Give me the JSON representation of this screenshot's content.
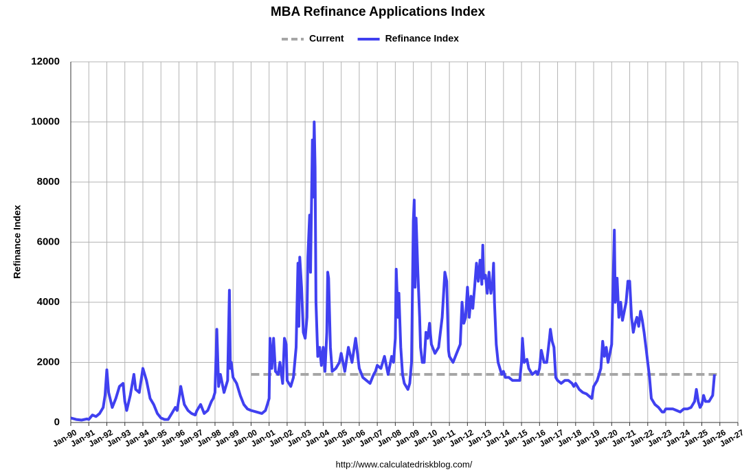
{
  "chart_data": {
    "type": "line",
    "title": "MBA Refinance Applications Index",
    "y_label": "Refinance Index",
    "source": "http://www.calculatedriskblog.com/",
    "legend": "top",
    "grid": true,
    "xlim": [
      1990,
      2027
    ],
    "xticks": [
      {
        "value": 1990,
        "label": "Jan-90"
      },
      {
        "value": 1991,
        "label": "Jan-91"
      },
      {
        "value": 1992,
        "label": "Jan-92"
      },
      {
        "value": 1993,
        "label": "Jan-93"
      },
      {
        "value": 1994,
        "label": "Jan-94"
      },
      {
        "value": 1995,
        "label": "Jan-95"
      },
      {
        "value": 1996,
        "label": "Jan-96"
      },
      {
        "value": 1997,
        "label": "Jan-97"
      },
      {
        "value": 1998,
        "label": "Jan-98"
      },
      {
        "value": 1999,
        "label": "Jan-99"
      },
      {
        "value": 2000,
        "label": "Jan-00"
      },
      {
        "value": 2001,
        "label": "Jan-01"
      },
      {
        "value": 2002,
        "label": "Jan-02"
      },
      {
        "value": 2003,
        "label": "Jan-03"
      },
      {
        "value": 2004,
        "label": "Jan-04"
      },
      {
        "value": 2005,
        "label": "Jan-05"
      },
      {
        "value": 2006,
        "label": "Jan-06"
      },
      {
        "value": 2007,
        "label": "Jan-07"
      },
      {
        "value": 2008,
        "label": "Jan-08"
      },
      {
        "value": 2009,
        "label": "Jan-09"
      },
      {
        "value": 2010,
        "label": "Jan-10"
      },
      {
        "value": 2011,
        "label": "Jan-11"
      },
      {
        "value": 2012,
        "label": "Jan-12"
      },
      {
        "value": 2013,
        "label": "Jan-13"
      },
      {
        "value": 2014,
        "label": "Jan-14"
      },
      {
        "value": 2015,
        "label": "Jan-15"
      },
      {
        "value": 2016,
        "label": "Jan-16"
      },
      {
        "value": 2017,
        "label": "Jan-17"
      },
      {
        "value": 2018,
        "label": "Jan-18"
      },
      {
        "value": 2019,
        "label": "Jan-19"
      },
      {
        "value": 2020,
        "label": "Jan-20"
      },
      {
        "value": 2021,
        "label": "Jan-21"
      },
      {
        "value": 2022,
        "label": "Jan-22"
      },
      {
        "value": 2023,
        "label": "Jan-23"
      },
      {
        "value": 2024,
        "label": "Jan-24"
      },
      {
        "value": 2025,
        "label": "Jan-25"
      },
      {
        "value": 2026,
        "label": "Jan-26"
      },
      {
        "value": 2027,
        "label": "Jan-27"
      }
    ],
    "ylim": [
      0,
      12000
    ],
    "yticks": [
      0,
      2000,
      4000,
      6000,
      8000,
      10000,
      12000
    ],
    "series": [
      {
        "name": "Current",
        "color": "#a6a6a6",
        "dashed": true,
        "x": [
          2000,
          2026
        ],
        "values": [
          1600,
          1600
        ]
      },
      {
        "name": "Refinance Index",
        "color": "#4040f0",
        "dashed": false,
        "x": [
          1990,
          1990.3,
          1990.6,
          1990.9,
          1991,
          1991.2,
          1991.4,
          1991.6,
          1991.8,
          1991.9,
          1992,
          1992.1,
          1992.3,
          1992.5,
          1992.7,
          1992.9,
          1993,
          1993.1,
          1993.3,
          1993.5,
          1993.6,
          1993.8,
          1994,
          1994.2,
          1994.4,
          1994.6,
          1994.8,
          1995,
          1995.2,
          1995.4,
          1995.6,
          1995.8,
          1995.9,
          1996,
          1996.1,
          1996.3,
          1996.5,
          1996.7,
          1996.9,
          1997,
          1997.2,
          1997.4,
          1997.6,
          1997.8,
          1997.9,
          1998,
          1998.1,
          1998.2,
          1998.3,
          1998.5,
          1998.7,
          1998.8,
          1998.85,
          1998.9,
          1999,
          1999.2,
          1999.4,
          1999.6,
          1999.8,
          2000,
          2000.3,
          2000.6,
          2000.8,
          2000.9,
          2001,
          2001.05,
          2001.15,
          2001.25,
          2001.35,
          2001.5,
          2001.6,
          2001.75,
          2001.85,
          2001.95,
          2002,
          2002.1,
          2002.2,
          2002.35,
          2002.5,
          2002.6,
          2002.65,
          2002.7,
          2002.8,
          2002.9,
          2003,
          2003.1,
          2003.15,
          2003.25,
          2003.3,
          2003.4,
          2003.45,
          2003.5,
          2003.55,
          2003.6,
          2003.7,
          2003.8,
          2003.9,
          2004,
          2004.1,
          2004.2,
          2004.25,
          2004.3,
          2004.4,
          2004.5,
          2004.7,
          2004.9,
          2005,
          2005.2,
          2005.4,
          2005.6,
          2005.8,
          2005.9,
          2006,
          2006.2,
          2006.4,
          2006.6,
          2006.8,
          2006.9,
          2007,
          2007.2,
          2007.4,
          2007.6,
          2007.8,
          2007.9,
          2008,
          2008.05,
          2008.15,
          2008.2,
          2008.3,
          2008.4,
          2008.5,
          2008.7,
          2008.8,
          2008.9,
          2009,
          2009.05,
          2009.1,
          2009.15,
          2009.25,
          2009.35,
          2009.4,
          2009.5,
          2009.6,
          2009.7,
          2009.8,
          2009.9,
          2010,
          2010.2,
          2010.4,
          2010.6,
          2010.75,
          2010.85,
          2010.95,
          2011,
          2011.2,
          2011.4,
          2011.6,
          2011.7,
          2011.8,
          2011.9,
          2012,
          2012.1,
          2012.2,
          2012.3,
          2012.4,
          2012.5,
          2012.6,
          2012.7,
          2012.8,
          2012.85,
          2012.9,
          2013,
          2013.1,
          2013.2,
          2013.3,
          2013.4,
          2013.45,
          2013.5,
          2013.6,
          2013.7,
          2013.8,
          2013.9,
          2014,
          2014.1,
          2014.3,
          2014.5,
          2014.7,
          2014.9,
          2015,
          2015.05,
          2015.15,
          2015.3,
          2015.4,
          2015.6,
          2015.8,
          2015.9,
          2016,
          2016.1,
          2016.25,
          2016.4,
          2016.55,
          2016.6,
          2016.7,
          2016.8,
          2016.9,
          2017,
          2017.2,
          2017.4,
          2017.6,
          2017.8,
          2017.9,
          2018,
          2018.2,
          2018.4,
          2018.6,
          2018.8,
          2018.9,
          2019,
          2019.2,
          2019.4,
          2019.5,
          2019.6,
          2019.7,
          2019.8,
          2019.9,
          2020,
          2020.15,
          2020.2,
          2020.3,
          2020.4,
          2020.5,
          2020.6,
          2020.7,
          2020.8,
          2020.9,
          2021,
          2021.1,
          2021.2,
          2021.3,
          2021.4,
          2021.5,
          2021.6,
          2021.7,
          2021.8,
          2021.9,
          2022,
          2022.1,
          2022.2,
          2022.4,
          2022.6,
          2022.8,
          2022.9,
          2023,
          2023.2,
          2023.4,
          2023.6,
          2023.8,
          2023.9,
          2024,
          2024.2,
          2024.4,
          2024.6,
          2024.7,
          2024.8,
          2024.9,
          2025,
          2025.1,
          2025.2,
          2025.4,
          2025.5,
          2025.6,
          2025.7
        ],
        "values": [
          150,
          100,
          80,
          120,
          100,
          250,
          200,
          300,
          500,
          900,
          1750,
          1000,
          500,
          800,
          1200,
          1300,
          700,
          400,
          900,
          1600,
          1100,
          1000,
          1800,
          1400,
          800,
          600,
          300,
          150,
          100,
          100,
          300,
          500,
          400,
          800,
          1200,
          600,
          400,
          300,
          250,
          400,
          600,
          300,
          400,
          700,
          800,
          1000,
          3100,
          1200,
          1600,
          1000,
          1400,
          4400,
          1800,
          2000,
          1500,
          1300,
          900,
          600,
          450,
          400,
          350,
          300,
          400,
          600,
          800,
          2800,
          1800,
          2800,
          1700,
          1600,
          2000,
          1300,
          2800,
          2600,
          1400,
          1300,
          1200,
          1500,
          2500,
          5300,
          3200,
          5500,
          4500,
          3000,
          2800,
          3500,
          5500,
          6900,
          5000,
          9400,
          7500,
          10000,
          8500,
          4000,
          2200,
          2500,
          1900,
          2500,
          1700,
          3000,
          5000,
          4800,
          2500,
          1700,
          1800,
          2000,
          2300,
          1700,
          2500,
          2000,
          2800,
          2300,
          1800,
          1500,
          1400,
          1300,
          1600,
          1700,
          1900,
          1800,
          2200,
          1600,
          2200,
          2000,
          2800,
          5100,
          3500,
          4300,
          2500,
          1600,
          1300,
          1100,
          1300,
          2000,
          6700,
          7400,
          4500,
          6800,
          5000,
          3500,
          2500,
          2000,
          2000,
          3000,
          2800,
          3300,
          2600,
          2300,
          2500,
          3500,
          5000,
          4700,
          2400,
          2200,
          2000,
          2300,
          2600,
          4000,
          3300,
          3500,
          4500,
          3500,
          4200,
          3800,
          4500,
          5300,
          4700,
          5400,
          4600,
          5900,
          4800,
          4900,
          4300,
          5000,
          4300,
          4700,
          5300,
          4000,
          2600,
          2000,
          1800,
          1600,
          1700,
          1500,
          1500,
          1400,
          1400,
          1400,
          2000,
          2800,
          2000,
          2100,
          1800,
          1600,
          1700,
          1600,
          1800,
          2400,
          2000,
          2000,
          2800,
          3100,
          2700,
          2500,
          1500,
          1400,
          1300,
          1400,
          1400,
          1300,
          1200,
          1300,
          1100,
          1000,
          950,
          850,
          800,
          1200,
          1400,
          1800,
          2700,
          2200,
          2500,
          2000,
          2300,
          2600,
          6400,
          4000,
          4800,
          3500,
          4000,
          3400,
          3700,
          4000,
          4700,
          4700,
          3500,
          3000,
          3300,
          3500,
          3200,
          3700,
          3400,
          3000,
          2500,
          2000,
          1500,
          800,
          600,
          500,
          350,
          350,
          450,
          450,
          450,
          400,
          350,
          400,
          450,
          450,
          500,
          700,
          1100,
          700,
          500,
          600,
          900,
          700,
          700,
          800,
          900,
          1600
        ]
      }
    ]
  }
}
